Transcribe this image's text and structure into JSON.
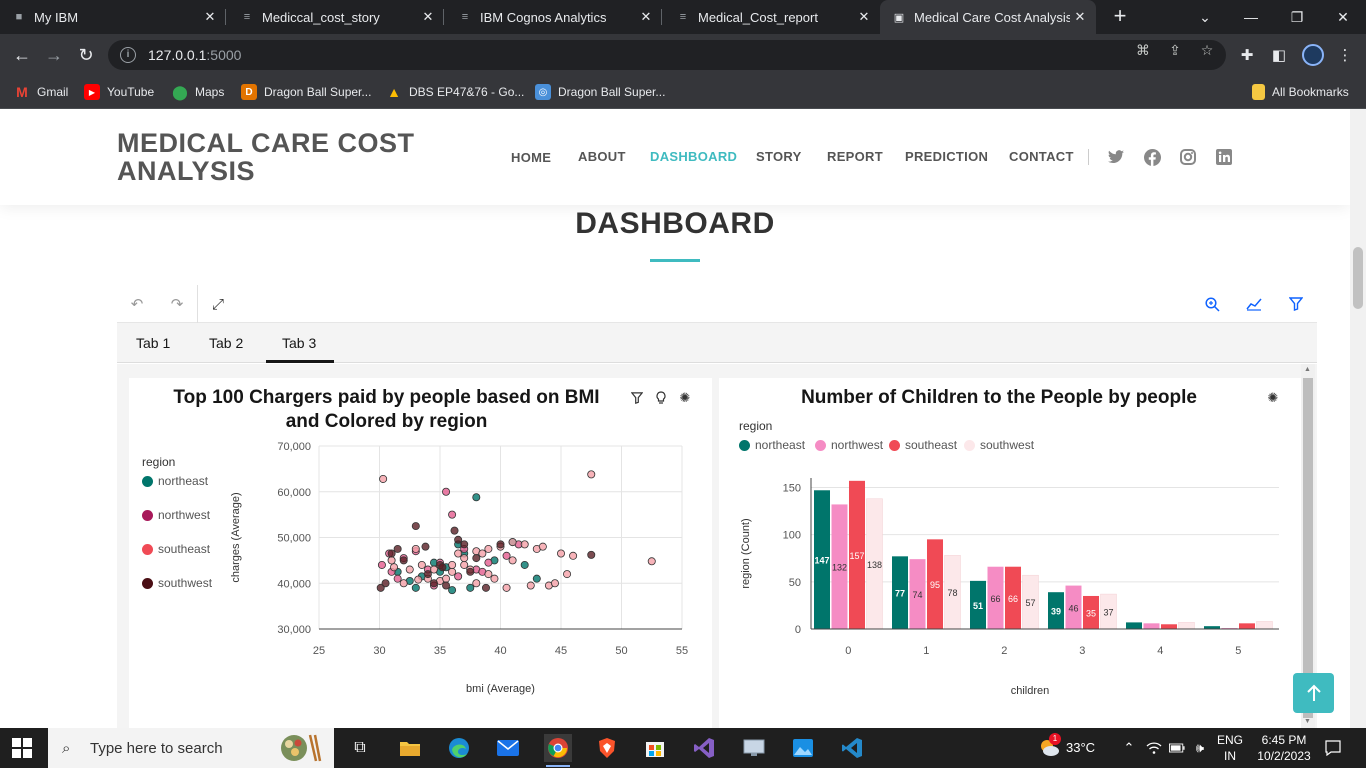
{
  "browser": {
    "tabs": [
      {
        "label": "My IBM",
        "icon": "ibm-icon"
      },
      {
        "label": "Mediccal_cost_story",
        "icon": "cognos-icon"
      },
      {
        "label": "IBM Cognos Analytics",
        "icon": "cognos-icon"
      },
      {
        "label": "Medical_Cost_report",
        "icon": "cognos-icon"
      },
      {
        "label": "Medical Care Cost Analysis",
        "icon": "site-icon",
        "active": true
      }
    ],
    "url_host": "127.0.0.1",
    "url_port": ":5000",
    "bookmarks": [
      {
        "label": "Gmail",
        "icon": "gmail-icon",
        "color": "#ea4335"
      },
      {
        "label": "YouTube",
        "icon": "youtube-icon",
        "color": "#ff0000"
      },
      {
        "label": "Maps",
        "icon": "maps-icon",
        "color": "#34a853"
      },
      {
        "label": "Dragon Ball Super...",
        "icon": "dragonball-icon",
        "color": "#e37400"
      },
      {
        "label": "DBS EP47&76 - Go...",
        "icon": "drive-icon",
        "color": "#fbbc04"
      },
      {
        "label": "Dragon Ball Super...",
        "icon": "site-icon",
        "color": "#4a90d9"
      }
    ],
    "all_bookmarks": "All Bookmarks"
  },
  "site": {
    "brand_line1": "MEDICAL CARE COST",
    "brand_line2": "ANALYSIS",
    "nav": [
      {
        "label": "HOME"
      },
      {
        "label": "ABOUT"
      },
      {
        "label": "DASHBOARD",
        "active": true
      },
      {
        "label": "STORY"
      },
      {
        "label": "REPORT"
      },
      {
        "label": "PREDICTION"
      },
      {
        "label": "CONTACT"
      }
    ],
    "social": [
      "twitter-icon",
      "facebook-icon",
      "instagram-icon",
      "linkedin-icon"
    ],
    "section_title": "DASHBOARD",
    "accent": "#3fbbc0"
  },
  "dashboard": {
    "tabs": [
      "Tab 1",
      "Tab 2",
      "Tab 3"
    ],
    "active_tab": "Tab 3"
  },
  "chart_data": [
    {
      "type": "scatter",
      "title": "Top 100 Chargers paid by people based on BMI and Colored by region",
      "xlabel": "bmi (Average)",
      "ylabel": "charges (Average)",
      "xlim": [
        25,
        55
      ],
      "ylim": [
        30000,
        70000
      ],
      "xticks": [
        "25",
        "30",
        "35",
        "40",
        "45",
        "50",
        "55"
      ],
      "yticks": [
        "30,000",
        "40,000",
        "50,000",
        "60,000",
        "70,000"
      ],
      "legend_title": "region",
      "legend_placement": "left",
      "grid": true,
      "series": [
        {
          "name": "northeast",
          "color": "#00756b",
          "points": [
            [
              32.5,
              40500
            ],
            [
              33.5,
              41500
            ],
            [
              34.5,
              44500
            ],
            [
              35,
              42500
            ],
            [
              36.5,
              48500
            ],
            [
              37,
              46500
            ],
            [
              37.5,
              39000
            ],
            [
              38,
              58800
            ],
            [
              41,
              49000
            ],
            [
              42,
              44000
            ],
            [
              43,
              41000
            ],
            [
              36,
              38500
            ],
            [
              31.5,
              42500
            ],
            [
              33,
              39000
            ],
            [
              35.5,
              43500
            ],
            [
              39.5,
              45000
            ]
          ]
        },
        {
          "name": "northwest",
          "color": "#e45c8e",
          "points": [
            [
              30.2,
              44000
            ],
            [
              31,
              42500
            ],
            [
              32,
              45500
            ],
            [
              33,
              47000
            ],
            [
              34,
              43000
            ],
            [
              35,
              44500
            ],
            [
              35.5,
              60000
            ],
            [
              36,
              55000
            ],
            [
              37,
              47500
            ],
            [
              38,
              43000
            ],
            [
              39,
              44500
            ],
            [
              40.5,
              46000
            ],
            [
              31.5,
              41000
            ],
            [
              34.5,
              39500
            ],
            [
              36.5,
              41500
            ],
            [
              38.5,
              42500
            ],
            [
              41.5,
              48500
            ],
            [
              30.8,
              46500
            ]
          ]
        },
        {
          "name": "southeast",
          "color": "#f5a0a8",
          "points": [
            [
              30.3,
              62800
            ],
            [
              31.2,
              43500
            ],
            [
              32,
              40000
            ],
            [
              33.5,
              44000
            ],
            [
              34,
              41000
            ],
            [
              35,
              40500
            ],
            [
              36,
              42500
            ],
            [
              37,
              44000
            ],
            [
              38,
              47000
            ],
            [
              38.5,
              46500
            ],
            [
              39,
              47500
            ],
            [
              40,
              48000
            ],
            [
              41,
              49000
            ],
            [
              42,
              48500
            ],
            [
              43,
              47500
            ],
            [
              44,
              39500
            ],
            [
              45.5,
              42000
            ],
            [
              46,
              46000
            ],
            [
              47.5,
              63800
            ],
            [
              52.5,
              44800
            ],
            [
              31,
              45000
            ],
            [
              33,
              47500
            ],
            [
              36,
              44000
            ],
            [
              37.5,
              43000
            ],
            [
              39.5,
              41000
            ],
            [
              40.5,
              39000
            ],
            [
              42.5,
              39500
            ],
            [
              34.5,
              43000
            ],
            [
              35.5,
              41000
            ],
            [
              37,
              45500
            ],
            [
              32.5,
              43000
            ],
            [
              38,
              40000
            ],
            [
              39,
              42000
            ],
            [
              41,
              45000
            ],
            [
              43.5,
              48000
            ],
            [
              45,
              46500
            ],
            [
              44.5,
              40000
            ],
            [
              36.5,
              46500
            ],
            [
              33.2,
              40800
            ]
          ]
        },
        {
          "name": "southwest",
          "color": "#5a1f25",
          "points": [
            [
              30.1,
              39000
            ],
            [
              30.5,
              40000
            ],
            [
              31.5,
              47500
            ],
            [
              32,
              45000
            ],
            [
              33,
              52500
            ],
            [
              33.8,
              48000
            ],
            [
              34.5,
              40000
            ],
            [
              35,
              44000
            ],
            [
              35.5,
              39500
            ],
            [
              36.2,
              51500
            ],
            [
              37,
              48500
            ],
            [
              38,
              45500
            ],
            [
              38.8,
              39000
            ],
            [
              40,
              48500
            ],
            [
              47.5,
              46200
            ],
            [
              31,
              46500
            ],
            [
              34,
              42000
            ],
            [
              36.5,
              49500
            ],
            [
              37.5,
              42500
            ],
            [
              35.2,
              43500
            ]
          ]
        }
      ]
    },
    {
      "type": "bar",
      "title": "Number of Children to the People by people",
      "xlabel": "children",
      "ylabel": "region (Count)",
      "categories": [
        "0",
        "1",
        "2",
        "3",
        "4",
        "5"
      ],
      "ylim": [
        0,
        160
      ],
      "yticks": [
        "0",
        "50",
        "100",
        "150"
      ],
      "legend_title": "region",
      "legend_placement": "top-left",
      "grid": true,
      "series": [
        {
          "name": "northeast",
          "color": "#00756b",
          "values": [
            147,
            77,
            51,
            39,
            7,
            3
          ]
        },
        {
          "name": "northwest",
          "color": "#f58cc4",
          "values": [
            132,
            74,
            66,
            46,
            6,
            1
          ]
        },
        {
          "name": "southeast",
          "color": "#f04a55",
          "values": [
            157,
            95,
            66,
            35,
            5,
            6
          ]
        },
        {
          "name": "southwest",
          "color": "#fce8ea",
          "values": [
            138,
            78,
            57,
            37,
            7,
            8
          ]
        }
      ],
      "value_labels_shown_for": [
        0,
        1,
        2,
        3
      ]
    }
  ],
  "taskbar": {
    "search_placeholder": "Type here to search",
    "weather": "33°C",
    "lang_line1": "ENG",
    "lang_line2": "IN",
    "time": "6:45 PM",
    "date": "10/2/2023",
    "notification_count": "1"
  }
}
